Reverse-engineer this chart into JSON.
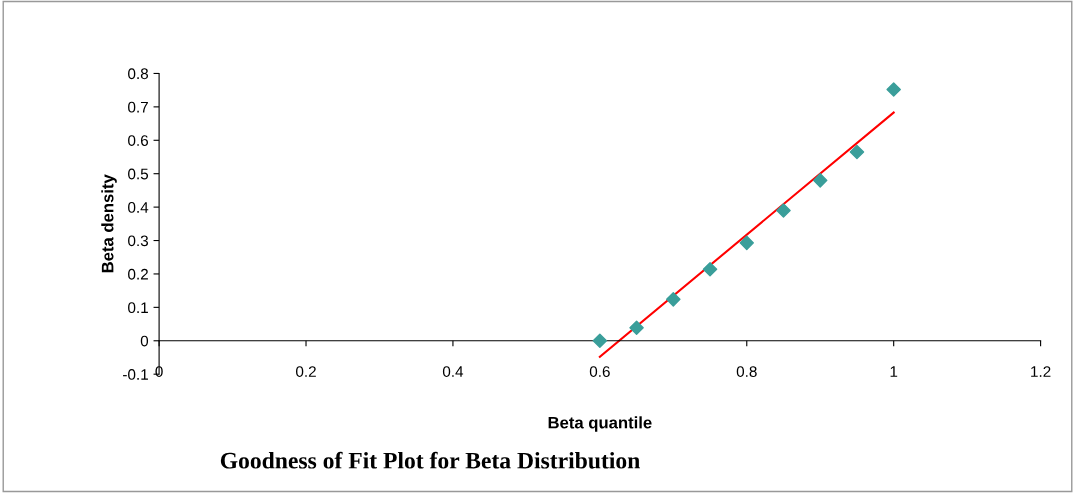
{
  "chart_data": {
    "type": "scatter",
    "title": "Goodness of Fit Plot for Beta Distribution",
    "xlabel": "Beta quantile",
    "ylabel": "Beta density",
    "x": [
      0.6,
      0.65,
      0.7,
      0.75,
      0.8,
      0.85,
      0.9,
      0.95,
      1.0
    ],
    "series": [
      {
        "color": "#3a9e9a",
        "marker": "diamond",
        "values": [
          0.0,
          0.039,
          0.124,
          0.214,
          0.293,
          0.39,
          0.48,
          0.565,
          0.752
        ]
      },
      {
        "type": "line",
        "color": "#ff0000",
        "x": [
          0.6,
          1.0
        ],
        "values": [
          -0.048,
          0.683
        ],
        "marker": "none",
        "line_style": "solid"
      }
    ],
    "xlim": [
      0,
      1.2
    ],
    "xticks": [
      0,
      0.2,
      0.4,
      0.6,
      0.8,
      1,
      1.2
    ],
    "ylim": [
      -0.1,
      0.8
    ],
    "yticks": [
      -0.1,
      0,
      0.1,
      0.2,
      0.3,
      0.4,
      0.5,
      0.6,
      0.7,
      0.8
    ],
    "grid": false,
    "legend": false
  }
}
